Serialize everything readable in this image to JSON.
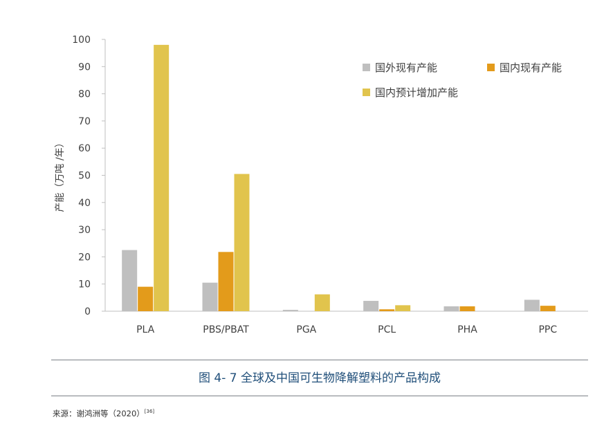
{
  "chart_data": {
    "type": "bar",
    "title": "",
    "xlabel": "",
    "ylabel": "产能（万吨 /年）",
    "ylim": [
      0,
      100
    ],
    "yticks": [
      0,
      10,
      20,
      30,
      40,
      50,
      60,
      70,
      80,
      90,
      100
    ],
    "categories": [
      "PLA",
      "PBS/PBAT",
      "PGA",
      "PCL",
      "PHA",
      "PPC"
    ],
    "series": [
      {
        "name": "国外现有产能",
        "color": "#bfbfbf",
        "values": [
          22.5,
          10.5,
          0.5,
          3.8,
          1.8,
          4.2
        ]
      },
      {
        "name": "国内现有产能",
        "color": "#e39b1b",
        "values": [
          9,
          21.8,
          0,
          0.7,
          1.8,
          2
        ]
      },
      {
        "name": "国内预计增加产能",
        "color": "#e1c44d",
        "values": [
          98,
          50.5,
          6.2,
          2.2,
          0,
          0
        ]
      }
    ],
    "legend_position": "top-right",
    "grid": false
  },
  "figure": {
    "caption": "图 4- 7 全球及中国可生物降解塑料的产品构成",
    "source_text": "来源：谢鸿洲等（2020）",
    "source_ref": "[36]"
  }
}
